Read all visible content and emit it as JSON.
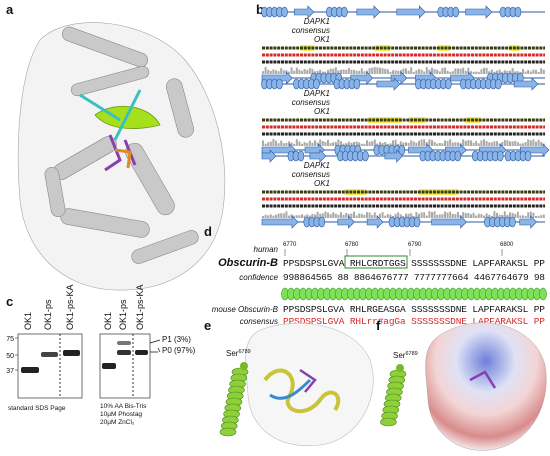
{
  "panels": {
    "a": {
      "label": "a"
    },
    "b": {
      "label": "b",
      "blocks": [
        {
          "rows": [
            "DAPK1",
            "consensus",
            "OK1"
          ]
        },
        {
          "rows": [
            "DAPK1",
            "consensus",
            "OK1"
          ]
        },
        {
          "rows": [
            "DAPK1",
            "consensus",
            "OK1"
          ]
        }
      ]
    },
    "c": {
      "label": "c",
      "lanes_left": [
        "OK1",
        "OK1-ps",
        "OK1-ps-KA"
      ],
      "lanes_right": [
        "OK1",
        "OK1-ps",
        "OK1-ps-KA"
      ],
      "markers": [
        75,
        50,
        37
      ],
      "bands": [
        "P1 (3%)",
        "P0 (97%)"
      ],
      "left_caption": "standard SDS Page",
      "right_caption": [
        "10% AA Bis-Tris",
        "10µM Phostag",
        "20µM ZnCl₂"
      ]
    },
    "d": {
      "label": "d",
      "positions": [
        6770,
        6780,
        6790,
        6800
      ],
      "species": "human",
      "protein": "Obscurin-B",
      "confidence_label": "confidence",
      "human_sequence": "PPSDSPSLGVA RHLCRDTGGS SSSSSSSDNE LAPFARAKSL PP",
      "confidence": "998864565 88 8864676777 7777777664 4467764679 98",
      "mouse_label": "mouse Obscurin-B",
      "mouse_sequence": "PPSDSPSLGVA RHLRGEASGA SSSSSSSDNE LAPFARAKSL PP",
      "consensus_label": "consensus",
      "consensus_sequence": "PPSDSPSLGVA RHLrr#agGa SSSSSSSDNE LAPFARAKSL PP"
    },
    "e": {
      "label": "e",
      "residue": "Ser",
      "number": "6789"
    },
    "f": {
      "label": "f",
      "residue": "Ser",
      "number": "6789"
    }
  }
}
